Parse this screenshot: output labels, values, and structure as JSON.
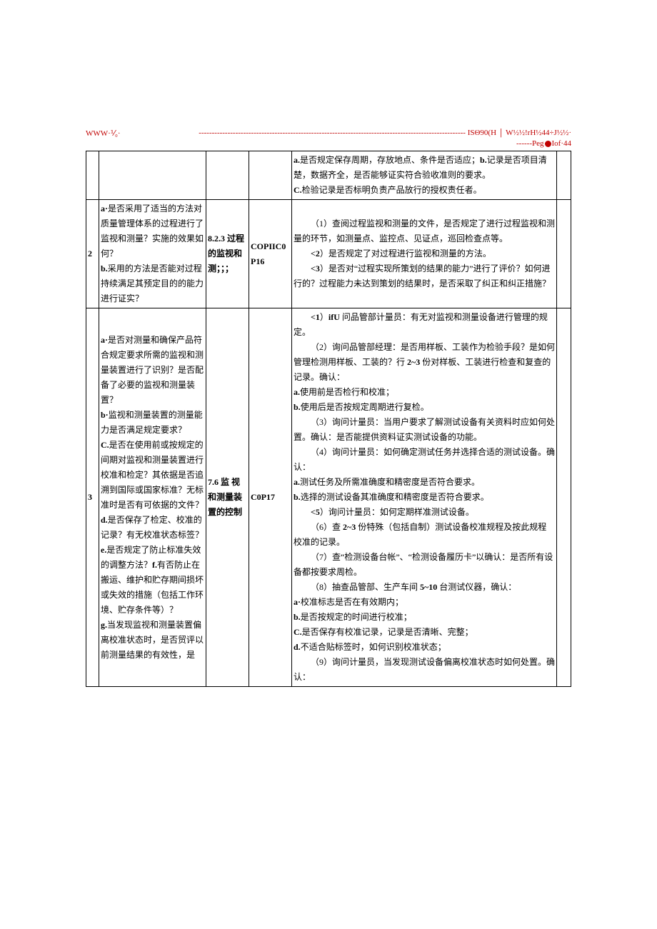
{
  "header": {
    "left": "WWW·⅟₀·",
    "dash": "------------------------------------------------------------------------------------------------------",
    "right1": "ISΘ90(H │ W½½!rH½44÷J½½·",
    "right2_prefix": "------Peg",
    "right2_suffix": "Iof·44"
  },
  "rows": [
    {
      "no": "",
      "question": "",
      "std": "",
      "code": "",
      "check": "<span class=\"b\">a.</span>是否规定保存周期，存放地点、条件是否适应；<span class=\"b\">b.</span>记录是否项目清楚，数据齐全，是否能够证实符合验收准则的要求。<br><span class=\"b\">C.</span>检验记录是否标明负责产品放行的授权责任者。"
    },
    {
      "no": "2",
      "question": "<span class=\"b\">a·</span>是否采用了适当的方法对质量管理体系的过程进行了监视和测量？实施的效果如何？<br><span class=\"b\">b.</span>采用的方法是否能对过程持续满足其预定目的的能力进行证实？",
      "std": "8.2.3 过程的监视和测；；；",
      "code": "COPIIC0P16",
      "check": "<p class=\"cell-p indent\">（1）查阅过程监视和测量的文件，是否规定了进行过程监视和测量的环节，如测量点、监控点、见证点，巡回检查点等。</p><p class=\"cell-p indent\"><span class=\"b\">&lt;2</span>）是否规定了对过程进行监视和测量的方法。</p><p class=\"cell-p indent\"><span class=\"b\">&lt;3</span>）是否对“过程实现所策划的结果的能力”进行了评价？如何进行的？过程能力未达到策划的结果时，是否采取了纠正和纠正措施？</p>"
    },
    {
      "no": "3",
      "question": "<span class=\"b\">a·</span>是否对测量和确保产品符合规定要求所需的监视和测量装置进行了识别？是否配备了必要的监视和测量装置？<br><span class=\"b\">b·</span>监视和测量装置的测量能力是否满足规定要求？<br><span class=\"b\">C.</span>是否在使用前或按规定的间期对监视和测量装置进行校准和检定？其依据是否追溯到国际或国家标准？无标准时是否有可依据的文件？<br><span class=\"b\">d.</span>是否保存了检定、校准的记录？有无校准状态标签？<br><span class=\"b\">e.</span>是否规定了防止标准失效的调整方法？<span class=\"b\">f.</span>有否防止在搬运、维护和贮存期间损坏或失效的措施（包括工作环境、贮存条件等）？<br><span class=\"b\">g.</span>当发现监视和测量装置偏离校准状态时，是否贸评以前测量结果的有效性，是",
      "std": "7.6 监 视和测量装置的控制",
      "code": "C0P17",
      "check": "<p class=\"cell-p indent\"><span class=\"b\">&lt;1</span>）<span class=\"b\">ifU</span> 问品管部计量员：有无对监视和测量设备进行管理的规定。</p><p class=\"cell-p indent\">（2）询问品管部经理：是否用样板、工装作为检验手段？是如何管理检测用样板、工装的？行 <span class=\"b\">2~3</span> 份对样板、工装进行检查和复查的记录。确认：</p><p class=\"cell-p\"><span class=\"b\">a.</span>使用前是否检行和校准；</p><p class=\"cell-p\"><span class=\"b\">b.</span>使用后是否按规定周期进行复检。</p><p class=\"cell-p indent\">（3）询问计量员：当用户要求了解测试设备有关资料时应如何处置。确认：是否能提供资料证实测试设备的功能。</p><p class=\"cell-p indent\">（4）询问计量员：如何确定测试任务并选择合适的测试设备。确认：</p><p class=\"cell-p\"><span class=\"b\">a.</span>测试任务及所需准确度和精密度是否符合要求。</p><p class=\"cell-p\"><span class=\"b\">b.</span>选择的测试设备其准确度和精密度是否符合要求。</p><p class=\"cell-p indent\"><span class=\"b\">&lt;5</span>）询问计量员：如何定期样准测试设备。</p><p class=\"cell-p indent\">（6）查 <span class=\"b\">2~3</span> 份特殊（包括自制）测试设备校准规程及按此规程校准的记录。</p><p class=\"cell-p indent\">（7）查“检测设备台帐”、“检测设备履历卡”以确认：是否所有设备都按要求周检。</p><p class=\"cell-p indent\">（8）抽查品管部、生产车间 <span class=\"b\">5~10</span> 台测试仪器，确认：</p><p class=\"cell-p\"><span class=\"b\">a·</span>校准标志是否在有效期内；</p><p class=\"cell-p\"><span class=\"b\">b.</span>是否按规定的时间进行校准；</p><p class=\"cell-p\"><span class=\"b\">C.</span>是否保存有校准记录，记录是否清晰、完整；</p><p class=\"cell-p\"><span class=\"b\">d.</span>不适合贴标签时，如何识别校准状态；</p><p class=\"cell-p indent\">（9）询问计量员，当发现测试设备偏离校准状态时如何处置。确认：</p>"
    }
  ]
}
